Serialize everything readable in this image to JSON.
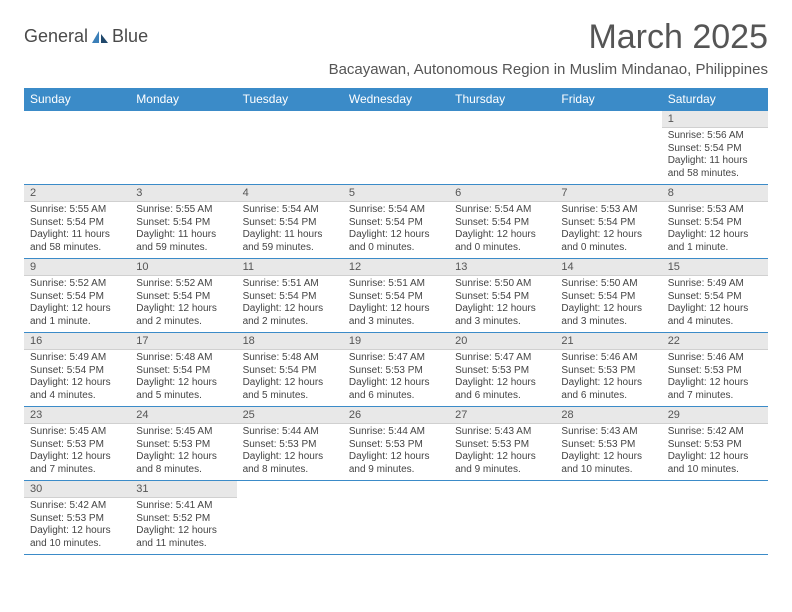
{
  "logo": {
    "text1": "General",
    "text2": "Blue"
  },
  "title": "March 2025",
  "subtitle": "Bacayawan, Autonomous Region in Muslim Mindanao, Philippines",
  "colors": {
    "header_bg": "#3b8bc8",
    "header_text": "#ffffff",
    "daynum_bg": "#e8e8e8",
    "border": "#3b8bc8",
    "body_text": "#444444"
  },
  "fontsize": {
    "title": 34,
    "subtitle": 15,
    "dayheader": 12,
    "daynum": 11,
    "cell": 10
  },
  "dayHeaders": [
    "Sunday",
    "Monday",
    "Tuesday",
    "Wednesday",
    "Thursday",
    "Friday",
    "Saturday"
  ],
  "weeks": [
    [
      null,
      null,
      null,
      null,
      null,
      null,
      {
        "n": "1",
        "sunrise": "5:56 AM",
        "sunset": "5:54 PM",
        "daylight": "11 hours and 58 minutes."
      }
    ],
    [
      {
        "n": "2",
        "sunrise": "5:55 AM",
        "sunset": "5:54 PM",
        "daylight": "11 hours and 58 minutes."
      },
      {
        "n": "3",
        "sunrise": "5:55 AM",
        "sunset": "5:54 PM",
        "daylight": "11 hours and 59 minutes."
      },
      {
        "n": "4",
        "sunrise": "5:54 AM",
        "sunset": "5:54 PM",
        "daylight": "11 hours and 59 minutes."
      },
      {
        "n": "5",
        "sunrise": "5:54 AM",
        "sunset": "5:54 PM",
        "daylight": "12 hours and 0 minutes."
      },
      {
        "n": "6",
        "sunrise": "5:54 AM",
        "sunset": "5:54 PM",
        "daylight": "12 hours and 0 minutes."
      },
      {
        "n": "7",
        "sunrise": "5:53 AM",
        "sunset": "5:54 PM",
        "daylight": "12 hours and 0 minutes."
      },
      {
        "n": "8",
        "sunrise": "5:53 AM",
        "sunset": "5:54 PM",
        "daylight": "12 hours and 1 minute."
      }
    ],
    [
      {
        "n": "9",
        "sunrise": "5:52 AM",
        "sunset": "5:54 PM",
        "daylight": "12 hours and 1 minute."
      },
      {
        "n": "10",
        "sunrise": "5:52 AM",
        "sunset": "5:54 PM",
        "daylight": "12 hours and 2 minutes."
      },
      {
        "n": "11",
        "sunrise": "5:51 AM",
        "sunset": "5:54 PM",
        "daylight": "12 hours and 2 minutes."
      },
      {
        "n": "12",
        "sunrise": "5:51 AM",
        "sunset": "5:54 PM",
        "daylight": "12 hours and 3 minutes."
      },
      {
        "n": "13",
        "sunrise": "5:50 AM",
        "sunset": "5:54 PM",
        "daylight": "12 hours and 3 minutes."
      },
      {
        "n": "14",
        "sunrise": "5:50 AM",
        "sunset": "5:54 PM",
        "daylight": "12 hours and 3 minutes."
      },
      {
        "n": "15",
        "sunrise": "5:49 AM",
        "sunset": "5:54 PM",
        "daylight": "12 hours and 4 minutes."
      }
    ],
    [
      {
        "n": "16",
        "sunrise": "5:49 AM",
        "sunset": "5:54 PM",
        "daylight": "12 hours and 4 minutes."
      },
      {
        "n": "17",
        "sunrise": "5:48 AM",
        "sunset": "5:54 PM",
        "daylight": "12 hours and 5 minutes."
      },
      {
        "n": "18",
        "sunrise": "5:48 AM",
        "sunset": "5:54 PM",
        "daylight": "12 hours and 5 minutes."
      },
      {
        "n": "19",
        "sunrise": "5:47 AM",
        "sunset": "5:53 PM",
        "daylight": "12 hours and 6 minutes."
      },
      {
        "n": "20",
        "sunrise": "5:47 AM",
        "sunset": "5:53 PM",
        "daylight": "12 hours and 6 minutes."
      },
      {
        "n": "21",
        "sunrise": "5:46 AM",
        "sunset": "5:53 PM",
        "daylight": "12 hours and 6 minutes."
      },
      {
        "n": "22",
        "sunrise": "5:46 AM",
        "sunset": "5:53 PM",
        "daylight": "12 hours and 7 minutes."
      }
    ],
    [
      {
        "n": "23",
        "sunrise": "5:45 AM",
        "sunset": "5:53 PM",
        "daylight": "12 hours and 7 minutes."
      },
      {
        "n": "24",
        "sunrise": "5:45 AM",
        "sunset": "5:53 PM",
        "daylight": "12 hours and 8 minutes."
      },
      {
        "n": "25",
        "sunrise": "5:44 AM",
        "sunset": "5:53 PM",
        "daylight": "12 hours and 8 minutes."
      },
      {
        "n": "26",
        "sunrise": "5:44 AM",
        "sunset": "5:53 PM",
        "daylight": "12 hours and 9 minutes."
      },
      {
        "n": "27",
        "sunrise": "5:43 AM",
        "sunset": "5:53 PM",
        "daylight": "12 hours and 9 minutes."
      },
      {
        "n": "28",
        "sunrise": "5:43 AM",
        "sunset": "5:53 PM",
        "daylight": "12 hours and 10 minutes."
      },
      {
        "n": "29",
        "sunrise": "5:42 AM",
        "sunset": "5:53 PM",
        "daylight": "12 hours and 10 minutes."
      }
    ],
    [
      {
        "n": "30",
        "sunrise": "5:42 AM",
        "sunset": "5:53 PM",
        "daylight": "12 hours and 10 minutes."
      },
      {
        "n": "31",
        "sunrise": "5:41 AM",
        "sunset": "5:52 PM",
        "daylight": "12 hours and 11 minutes."
      },
      null,
      null,
      null,
      null,
      null
    ]
  ],
  "labels": {
    "sunrise": "Sunrise: ",
    "sunset": "Sunset: ",
    "daylight": "Daylight: "
  }
}
